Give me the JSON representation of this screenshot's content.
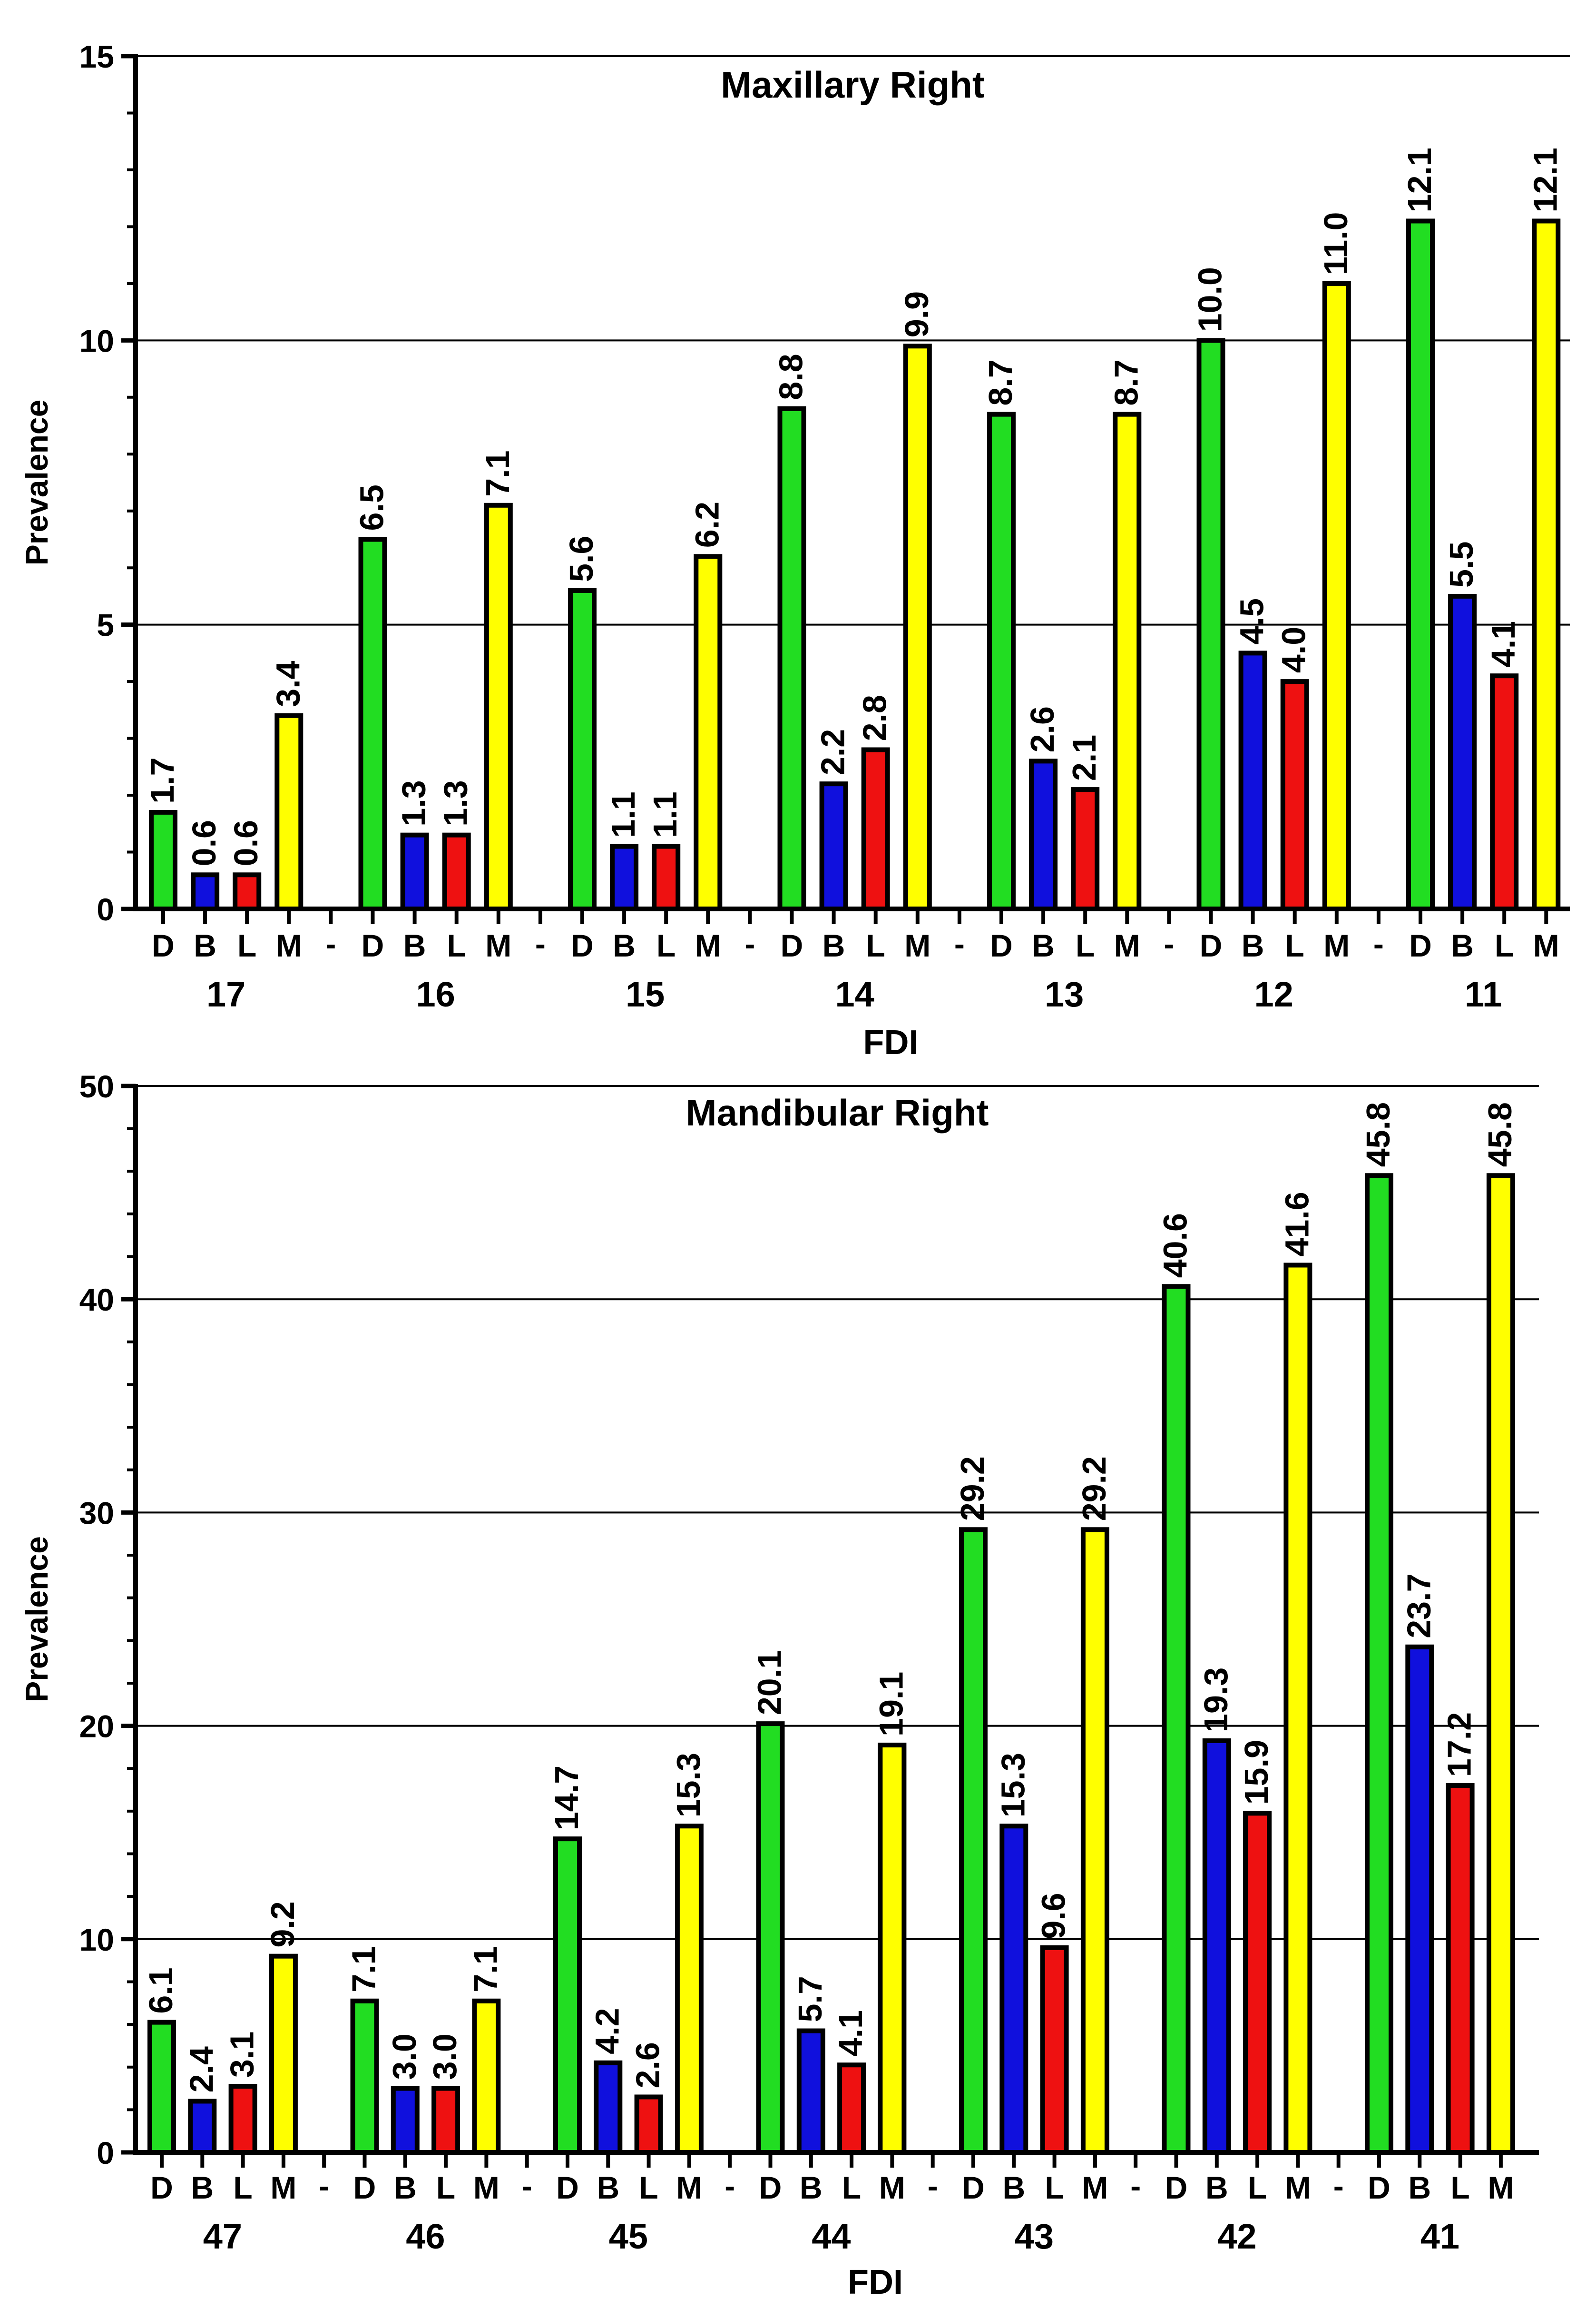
{
  "colors": {
    "D": "#22dd22",
    "B": "#1010dd",
    "L": "#ee1111",
    "M": "#ffff00",
    "outline": "#000000",
    "grid": "#000000"
  },
  "chart_data": [
    {
      "type": "bar",
      "title": "Maxillary Right",
      "xlabel": "FDI",
      "ylabel": "Prevalence",
      "ylim": [
        0,
        15
      ],
      "yticks": [
        "0",
        "5",
        "10",
        "15"
      ],
      "grid": true,
      "surfaces": [
        "D",
        "B",
        "L",
        "M"
      ],
      "separator_label": "-",
      "groups": [
        {
          "tooth": "17",
          "values": [
            1.7,
            0.6,
            0.6,
            3.4
          ],
          "labels": [
            "1.7",
            "0.6",
            "0.6",
            "3.4"
          ]
        },
        {
          "tooth": "16",
          "values": [
            6.5,
            1.3,
            1.3,
            7.1
          ],
          "labels": [
            "6.5",
            "1.3",
            "1.3",
            "7.1"
          ]
        },
        {
          "tooth": "15",
          "values": [
            5.6,
            1.1,
            1.1,
            6.2
          ],
          "labels": [
            "5.6",
            "1.1",
            "1.1",
            "6.2"
          ]
        },
        {
          "tooth": "14",
          "values": [
            8.8,
            2.2,
            2.8,
            9.9
          ],
          "labels": [
            "8.8",
            "2.2",
            "2.8",
            "9.9"
          ]
        },
        {
          "tooth": "13",
          "values": [
            8.7,
            2.6,
            2.1,
            8.7
          ],
          "labels": [
            "8.7",
            "2.6",
            "2.1",
            "8.7"
          ]
        },
        {
          "tooth": "12",
          "values": [
            10.0,
            4.5,
            4.0,
            11.0
          ],
          "labels": [
            "10.0",
            "4.5",
            "4.0",
            "11.0"
          ]
        },
        {
          "tooth": "11",
          "values": [
            12.1,
            5.5,
            4.1,
            12.1
          ],
          "labels": [
            "12.1",
            "5.5",
            "4.1",
            "12.1"
          ]
        }
      ]
    },
    {
      "type": "bar",
      "title": "Mandibular Right",
      "xlabel": "FDI",
      "ylabel": "Prevalence",
      "ylim": [
        0,
        50
      ],
      "yticks": [
        "0",
        "10",
        "20",
        "30",
        "40",
        "50"
      ],
      "grid": true,
      "surfaces": [
        "D",
        "B",
        "L",
        "M"
      ],
      "separator_label": "-",
      "groups": [
        {
          "tooth": "47",
          "values": [
            6.1,
            2.4,
            3.1,
            9.2
          ],
          "labels": [
            "6.1",
            "2.4",
            "3.1",
            "9.2"
          ]
        },
        {
          "tooth": "46",
          "values": [
            7.1,
            3.0,
            3.0,
            7.1
          ],
          "labels": [
            "7.1",
            "3.0",
            "3.0",
            "7.1"
          ]
        },
        {
          "tooth": "45",
          "values": [
            14.7,
            4.2,
            2.6,
            15.3
          ],
          "labels": [
            "14.7",
            "4.2",
            "2.6",
            "15.3"
          ]
        },
        {
          "tooth": "44",
          "values": [
            20.1,
            5.7,
            4.1,
            19.1
          ],
          "labels": [
            "20.1",
            "5.7",
            "4.1",
            "19.1"
          ]
        },
        {
          "tooth": "43",
          "values": [
            29.2,
            15.3,
            9.6,
            29.2
          ],
          "labels": [
            "29.2",
            "15.3",
            "9.6",
            "29.2"
          ]
        },
        {
          "tooth": "42",
          "values": [
            40.6,
            19.3,
            15.9,
            41.6
          ],
          "labels": [
            "40.6",
            "19.3",
            "15.9",
            "41.6"
          ]
        },
        {
          "tooth": "41",
          "values": [
            45.8,
            23.7,
            17.2,
            45.8
          ],
          "labels": [
            "45.8",
            "23.7",
            "17.2",
            "45.8"
          ]
        }
      ]
    }
  ]
}
